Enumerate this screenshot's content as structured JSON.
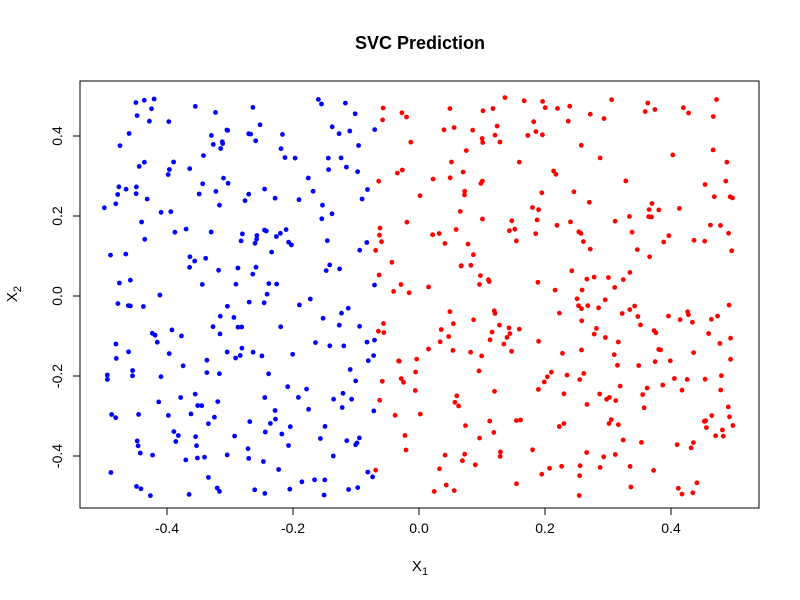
{
  "chart_data": {
    "type": "scatter",
    "title": "SVC Prediction",
    "xlabel": {
      "base": "X",
      "sub": "1"
    },
    "ylabel": {
      "base": "X",
      "sub": "2"
    },
    "xlim": [
      -0.5,
      0.5
    ],
    "ylim": [
      -0.5,
      0.5
    ],
    "xticks": [
      -0.4,
      -0.2,
      0.0,
      0.2,
      0.4
    ],
    "xtick_labels": [
      "-0.4",
      "-0.2",
      "0.0",
      "0.2",
      "0.4"
    ],
    "yticks": [
      -0.4,
      -0.2,
      0.0,
      0.2,
      0.4
    ],
    "ytick_labels": [
      "-0.4",
      "-0.2",
      "0.0",
      "0.2",
      "0.4"
    ],
    "grid": false,
    "legend": "none",
    "decision_boundary_x1": -0.07,
    "series": [
      {
        "color": "#0000ff",
        "x1_range": [
          -0.5,
          -0.07
        ],
        "x2_range": [
          -0.5,
          0.5
        ],
        "approx_count": 250
      },
      {
        "color": "#ff0000",
        "x1_range": [
          -0.07,
          0.5
        ],
        "x2_range": [
          -0.5,
          0.5
        ],
        "approx_count": 300
      }
    ]
  }
}
